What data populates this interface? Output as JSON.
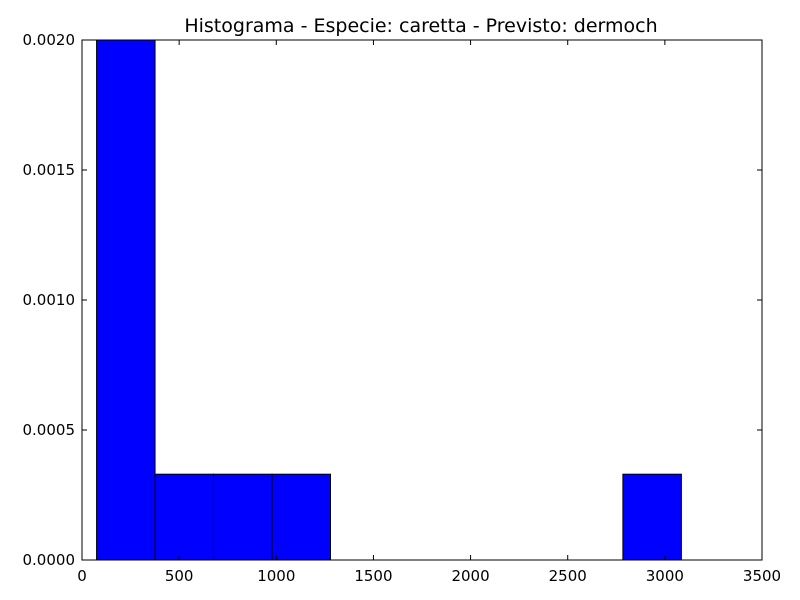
{
  "chart_data": {
    "type": "bar",
    "title": "Histograma - Especie: caretta - Previsto: dermoch",
    "xlabel": "",
    "ylabel": "",
    "xlim": [
      0,
      3500
    ],
    "ylim": [
      0,
      0.002
    ],
    "x_ticks": [
      0,
      500,
      1000,
      1500,
      2000,
      2500,
      3000,
      3500
    ],
    "x_tick_labels": [
      "0",
      "500",
      "1000",
      "1500",
      "2000",
      "2500",
      "3000",
      "3500"
    ],
    "y_ticks": [
      0,
      0.0005,
      0.001,
      0.0015,
      0.002
    ],
    "y_tick_labels": [
      "0.0000",
      "0.0005",
      "0.0010",
      "0.0015",
      "0.0020"
    ],
    "grid": false,
    "bar_color": "#0000ff",
    "bins": [
      {
        "x0": 75,
        "x1": 376,
        "value": 0.002
      },
      {
        "x0": 376,
        "x1": 677,
        "value": 0.00033
      },
      {
        "x0": 677,
        "x1": 978,
        "value": 0.00033
      },
      {
        "x0": 978,
        "x1": 1279,
        "value": 0.00033
      },
      {
        "x0": 1279,
        "x1": 1580,
        "value": 0
      },
      {
        "x0": 1580,
        "x1": 1881,
        "value": 0
      },
      {
        "x0": 1881,
        "x1": 2182,
        "value": 0
      },
      {
        "x0": 2182,
        "x1": 2483,
        "value": 0
      },
      {
        "x0": 2483,
        "x1": 2784,
        "value": 0
      },
      {
        "x0": 2784,
        "x1": 3085,
        "value": 0.00033
      }
    ]
  }
}
